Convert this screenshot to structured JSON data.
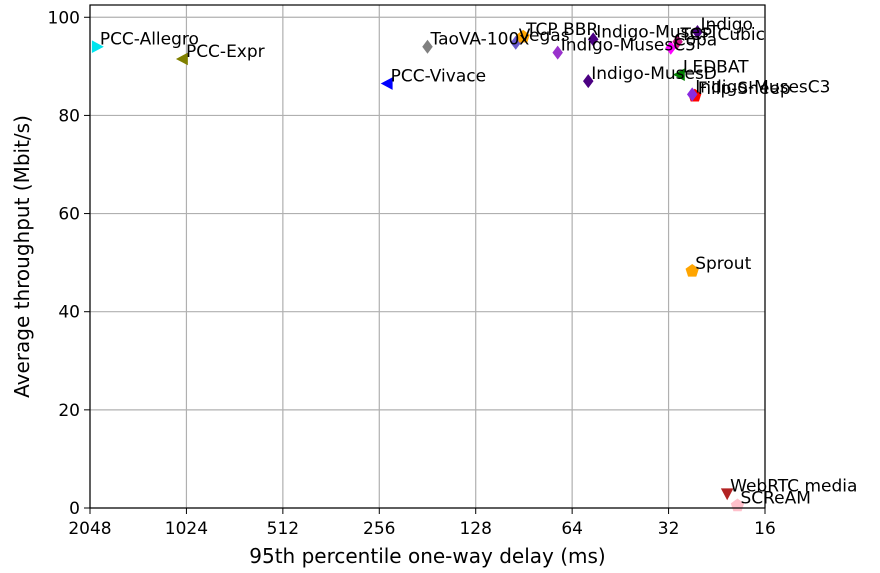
{
  "chart_data": {
    "type": "scatter",
    "title": "",
    "xlabel": "95th percentile one-way delay (ms)",
    "ylabel": "Average throughput (Mbit/s)",
    "x_scale": "log2",
    "x_reversed": true,
    "xlim": [
      2048,
      16
    ],
    "ylim": [
      0,
      102.5
    ],
    "x_ticks": [
      {
        "value": 2048,
        "label": "2048"
      },
      {
        "value": 1024,
        "label": "1024"
      },
      {
        "value": 512,
        "label": "512"
      },
      {
        "value": 256,
        "label": "256"
      },
      {
        "value": 128,
        "label": "128"
      },
      {
        "value": 64,
        "label": "64"
      },
      {
        "value": 32,
        "label": "32"
      },
      {
        "value": 16,
        "label": "16"
      }
    ],
    "y_ticks": [
      {
        "value": 0,
        "label": "0"
      },
      {
        "value": 20,
        "label": "20"
      },
      {
        "value": 40,
        "label": "40"
      },
      {
        "value": 60,
        "label": "60"
      },
      {
        "value": 80,
        "label": "80"
      },
      {
        "value": 100,
        "label": "100"
      }
    ],
    "grid": true,
    "legend": "none",
    "points": [
      {
        "label": "PCC-Allegro",
        "x": 1950,
        "y": 94.0,
        "marker": "triangle-right",
        "color": "#00e5ee"
      },
      {
        "label": "PCC-Expr",
        "x": 1050,
        "y": 91.5,
        "marker": "triangle-left",
        "color": "#808000"
      },
      {
        "label": "PCC-Vivace",
        "x": 241,
        "y": 86.5,
        "marker": "triangle-left",
        "color": "#0000ff"
      },
      {
        "label": "TaoVA-100x",
        "x": 181,
        "y": 94.0,
        "marker": "diamond",
        "color": "#808080"
      },
      {
        "label": "Vegas",
        "x": 96,
        "y": 94.8,
        "marker": "diamond",
        "color": "#6a5acd"
      },
      {
        "label": "TCP BBR",
        "x": 91,
        "y": 96.0,
        "marker": "pentagon",
        "color": "#ffa500"
      },
      {
        "label": "Indigo-MusesC5",
        "x": 71,
        "y": 92.8,
        "marker": "diamond",
        "color": "#9932cc"
      },
      {
        "label": "Indigo-MusesT",
        "x": 55,
        "y": 95.5,
        "marker": "diamond",
        "color": "#4b0082"
      },
      {
        "label": "Indigo-MusesD",
        "x": 57,
        "y": 87.0,
        "marker": "diamond",
        "color": "#4b0082"
      },
      {
        "label": "TCP Cubic",
        "x": 30,
        "y": 95.0,
        "marker": "diamond",
        "color": "#c71585"
      },
      {
        "label": "Copa",
        "x": 31.5,
        "y": 93.8,
        "marker": "diamond",
        "color": "#ff00ff"
      },
      {
        "label": "Indigo",
        "x": 26,
        "y": 97.0,
        "marker": "diamond",
        "color": "#4b0082"
      },
      {
        "label": "LEDBAT",
        "x": 29.5,
        "y": 88.3,
        "marker": "triangle-left",
        "color": "#008000"
      },
      {
        "label": "Fillp-Sheep",
        "x": 26.5,
        "y": 84.0,
        "marker": "pentagon",
        "color": "#ff0000"
      },
      {
        "label": "Indigo-MusesC3",
        "x": 27,
        "y": 84.3,
        "marker": "diamond",
        "color": "#8a2be2"
      },
      {
        "label": "Sprout",
        "x": 27,
        "y": 48.3,
        "marker": "pentagon",
        "color": "#ffa500"
      },
      {
        "label": "WebRTC media",
        "x": 21,
        "y": 3.0,
        "marker": "triangle-down",
        "color": "#b22222"
      },
      {
        "label": "SCReAM",
        "x": 19.5,
        "y": 0.5,
        "marker": "pentagon",
        "color": "#ffc0cb"
      }
    ],
    "annotations": [
      {
        "text": "PCC-Allegro",
        "x": 1950,
        "y": 94.0
      },
      {
        "text": "PCC-Expr",
        "x": 1050,
        "y": 91.5
      },
      {
        "text": "PCC-Vivace",
        "x": 241,
        "y": 86.5
      },
      {
        "text": "TaoVA-100x",
        "x": 181,
        "y": 94.0
      },
      {
        "text": "Vegas",
        "x": 96,
        "y": 94.8
      },
      {
        "text": "TCP BBR",
        "x": 91,
        "y": 96.0
      },
      {
        "text": "Indigo-MusesC5",
        "x": 71,
        "y": 92.8
      },
      {
        "text": "Indigo-MusesT",
        "x": 55,
        "y": 95.5
      },
      {
        "text": "Indigo-MusesD",
        "x": 57,
        "y": 87.0
      },
      {
        "text": "TCP Cubic",
        "x": 30,
        "y": 95.0
      },
      {
        "text": "Copa",
        "x": 31.5,
        "y": 93.8
      },
      {
        "text": "Indigo",
        "x": 26,
        "y": 97.0
      },
      {
        "text": "LEDBAT",
        "x": 29.5,
        "y": 88.3
      },
      {
        "text": "Fillp-Sheep",
        "x": 26.5,
        "y": 84.0
      },
      {
        "text": "Indigo-MusesC3",
        "x": 27,
        "y": 84.3
      },
      {
        "text": "Sprout",
        "x": 27,
        "y": 48.3
      },
      {
        "text": "WebRTC media",
        "x": 21,
        "y": 3.0
      },
      {
        "text": "SCReAM",
        "x": 19.5,
        "y": 0.5
      }
    ]
  }
}
